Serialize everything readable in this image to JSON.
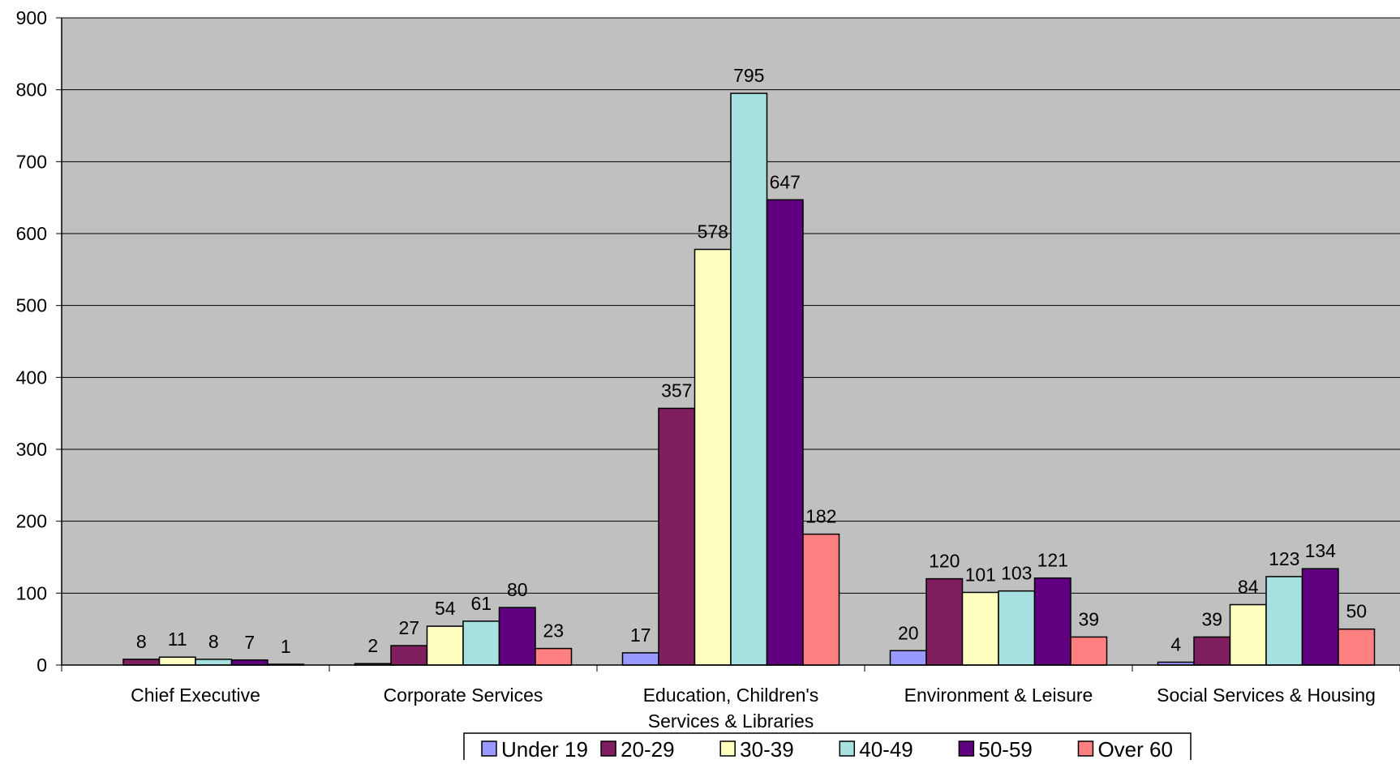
{
  "chart_data": {
    "type": "bar",
    "title": "",
    "xlabel": "",
    "ylabel": "",
    "ylim": [
      0,
      900
    ],
    "yticks": [
      0,
      100,
      200,
      300,
      400,
      500,
      600,
      700,
      800,
      900
    ],
    "grid": true,
    "legend_position": "bottom",
    "plot_background": "#c0c0c0",
    "categories": [
      [
        "Chief Executive"
      ],
      [
        "Corporate Services"
      ],
      [
        "Education, Children's",
        "Services & Libraries"
      ],
      [
        "Environment & Leisure"
      ],
      [
        "Social Services & Housing"
      ]
    ],
    "series": [
      {
        "name": "Under 19",
        "color": "#9999ff",
        "values": [
          null,
          2,
          17,
          20,
          4
        ]
      },
      {
        "name": "20-29",
        "color": "#7f1f5f",
        "values": [
          8,
          27,
          357,
          120,
          39
        ]
      },
      {
        "name": "30-39",
        "color": "#ffffc0",
        "values": [
          11,
          54,
          578,
          101,
          84
        ]
      },
      {
        "name": "40-49",
        "color": "#a6e0e0",
        "values": [
          8,
          61,
          795,
          103,
          123
        ]
      },
      {
        "name": "50-59",
        "color": "#600080",
        "values": [
          7,
          80,
          647,
          121,
          134
        ]
      },
      {
        "name": "Over 60",
        "color": "#ff8080",
        "values": [
          1,
          23,
          182,
          39,
          50
        ]
      }
    ]
  }
}
